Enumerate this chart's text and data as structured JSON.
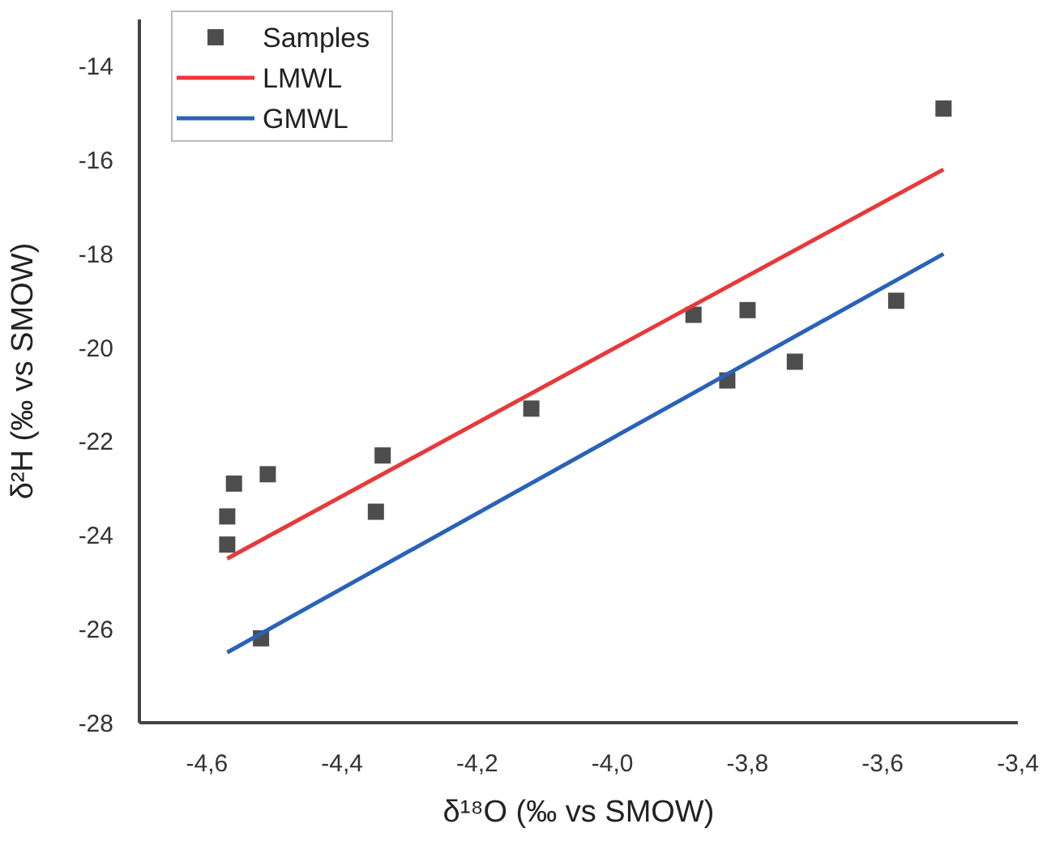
{
  "chart_data": {
    "type": "scatter",
    "xlabel": "δ¹⁸O (‰ vs SMOW)",
    "ylabel": "δ²H (‰ vs SMOW)",
    "xlim": [
      -4.7,
      -3.4
    ],
    "ylim": [
      -28,
      -13
    ],
    "xticks": [
      {
        "value": -4.6,
        "label": "-4,6"
      },
      {
        "value": -4.4,
        "label": "-4,4"
      },
      {
        "value": -4.2,
        "label": "-4,2"
      },
      {
        "value": -4.0,
        "label": "-4,0"
      },
      {
        "value": -3.8,
        "label": "-3,8"
      },
      {
        "value": -3.6,
        "label": "-3,6"
      },
      {
        "value": -3.4,
        "label": "-3,4"
      }
    ],
    "yticks": [
      -28,
      -26,
      -24,
      -22,
      -20,
      -18,
      -16,
      -14
    ],
    "grid": false,
    "legend": "top left",
    "series": [
      {
        "name": "Samples",
        "marker": "square",
        "color": "#4d4d4d",
        "x": [
          -4.57,
          -4.57,
          -4.56,
          -4.51,
          -4.52,
          -4.35,
          -4.34,
          -4.12,
          -3.88,
          -3.8,
          -3.83,
          -3.73,
          -3.58,
          -3.51
        ],
        "values": [
          -24.2,
          -23.6,
          -22.9,
          -22.7,
          -26.2,
          -23.5,
          -22.3,
          -21.3,
          -19.3,
          -19.2,
          -20.7,
          -20.3,
          -19.0,
          -14.9
        ]
      },
      {
        "name": "LMWL",
        "type": "line",
        "marker": "none",
        "color": "#e8393a",
        "x": [
          -4.57,
          -3.51
        ],
        "values": [
          -24.5,
          -16.2
        ]
      },
      {
        "name": "GMWL",
        "type": "line",
        "marker": "none",
        "color": "#2a62b8",
        "x": [
          -4.57,
          -3.51
        ],
        "values": [
          -26.5,
          -18.0
        ]
      }
    ]
  }
}
